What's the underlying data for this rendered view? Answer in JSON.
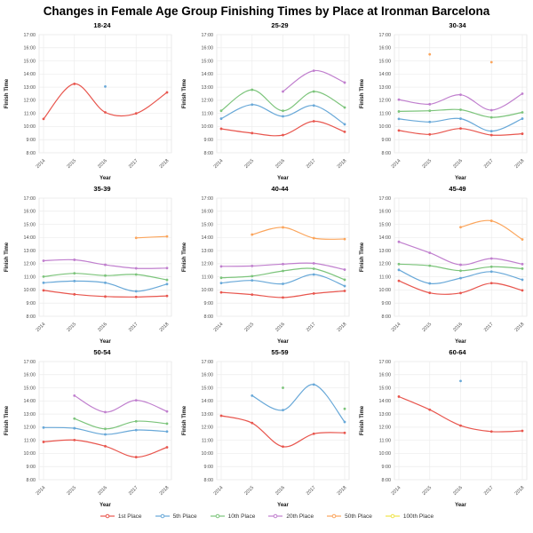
{
  "title": "Changes in Female Age Group Finishing Times by Place at Ironman Barcelona",
  "axes": {
    "xlabel": "Year",
    "ylabel": "Finish Time",
    "x_ticks": [
      2014,
      2015,
      2016,
      2017,
      2018
    ],
    "y_ticks": [
      "8:00",
      "9:00",
      "10:00",
      "11:00",
      "12:00",
      "13:00",
      "14:00",
      "15:00",
      "16:00",
      "17:00"
    ],
    "ylim": [
      8,
      17
    ],
    "grid": true,
    "grid_color": "#ececec",
    "panel_border_color": "#dddddd",
    "tick_label_color": "#4d4d4d",
    "axis_title_color": "#111111"
  },
  "palette": {
    "1st Place": "#e8564e",
    "5th Place": "#68a8d8",
    "10th Place": "#7cc47b",
    "20th Place": "#c07fce",
    "50th Place": "#fba55c",
    "100th Place": "#efe44a"
  },
  "legend": {
    "position": "bottom",
    "items": [
      "1st Place",
      "5th Place",
      "10th Place",
      "20th Place",
      "50th Place",
      "100th Place"
    ]
  },
  "chart_data": [
    {
      "type": "line",
      "title": "18-24",
      "x": [
        2014,
        2015,
        2016,
        2017,
        2018
      ],
      "series": [
        {
          "name": "1st Place",
          "values": [
            10.58,
            13.25,
            11.08,
            11.0,
            12.6
          ]
        },
        {
          "name": "5th Place",
          "values": [
            null,
            null,
            13.05,
            null,
            null
          ]
        }
      ]
    },
    {
      "type": "line",
      "title": "25-29",
      "x": [
        2014,
        2015,
        2016,
        2017,
        2018
      ],
      "series": [
        {
          "name": "1st Place",
          "values": [
            9.83,
            9.5,
            9.35,
            10.4,
            9.6
          ]
        },
        {
          "name": "5th Place",
          "values": [
            10.6,
            11.67,
            10.78,
            11.6,
            10.17
          ]
        },
        {
          "name": "10th Place",
          "values": [
            11.2,
            12.8,
            11.2,
            12.67,
            11.45
          ]
        },
        {
          "name": "20th Place",
          "values": [
            null,
            null,
            12.67,
            14.25,
            13.35
          ]
        }
      ]
    },
    {
      "type": "line",
      "title": "30-34",
      "x": [
        2014,
        2015,
        2016,
        2017,
        2018
      ],
      "series": [
        {
          "name": "1st Place",
          "values": [
            9.7,
            9.4,
            9.85,
            9.35,
            9.45
          ]
        },
        {
          "name": "5th Place",
          "values": [
            10.58,
            10.35,
            10.6,
            9.65,
            10.6
          ]
        },
        {
          "name": "10th Place",
          "values": [
            11.15,
            11.2,
            11.28,
            10.7,
            11.08
          ]
        },
        {
          "name": "20th Place",
          "values": [
            12.05,
            11.7,
            12.42,
            11.25,
            12.5
          ]
        },
        {
          "name": "50th Place",
          "values": [
            null,
            15.5,
            null,
            14.9,
            null
          ]
        }
      ]
    },
    {
      "type": "line",
      "title": "35-39",
      "x": [
        2014,
        2015,
        2016,
        2017,
        2018
      ],
      "series": [
        {
          "name": "1st Place",
          "values": [
            9.97,
            9.67,
            9.5,
            9.47,
            9.55
          ]
        },
        {
          "name": "5th Place",
          "values": [
            10.55,
            10.68,
            10.55,
            9.9,
            10.45
          ]
        },
        {
          "name": "10th Place",
          "values": [
            11.02,
            11.27,
            11.1,
            11.18,
            10.77
          ]
        },
        {
          "name": "20th Place",
          "values": [
            12.23,
            12.3,
            11.92,
            11.65,
            11.67
          ]
        },
        {
          "name": "50th Place",
          "values": [
            null,
            null,
            null,
            13.97,
            14.08
          ]
        }
      ]
    },
    {
      "type": "line",
      "title": "40-44",
      "x": [
        2014,
        2015,
        2016,
        2017,
        2018
      ],
      "series": [
        {
          "name": "1st Place",
          "values": [
            9.82,
            9.65,
            9.43,
            9.73,
            9.93
          ]
        },
        {
          "name": "5th Place",
          "values": [
            10.53,
            10.73,
            10.47,
            11.18,
            10.3
          ]
        },
        {
          "name": "10th Place",
          "values": [
            10.93,
            11.05,
            11.45,
            11.62,
            10.78
          ]
        },
        {
          "name": "20th Place",
          "values": [
            11.8,
            11.83,
            11.97,
            12.03,
            11.55
          ]
        },
        {
          "name": "50th Place",
          "values": [
            null,
            14.22,
            14.77,
            13.95,
            13.88
          ]
        }
      ]
    },
    {
      "type": "line",
      "title": "45-49",
      "x": [
        2014,
        2015,
        2016,
        2017,
        2018
      ],
      "series": [
        {
          "name": "1st Place",
          "values": [
            10.7,
            9.78,
            9.77,
            10.52,
            9.97
          ]
        },
        {
          "name": "5th Place",
          "values": [
            11.53,
            10.5,
            10.9,
            11.4,
            10.78
          ]
        },
        {
          "name": "10th Place",
          "values": [
            11.97,
            11.85,
            11.47,
            11.77,
            11.63
          ]
        },
        {
          "name": "20th Place",
          "values": [
            13.67,
            12.83,
            11.92,
            12.4,
            11.97
          ]
        },
        {
          "name": "50th Place",
          "values": [
            null,
            null,
            14.78,
            15.27,
            13.85
          ]
        }
      ]
    },
    {
      "type": "line",
      "title": "50-54",
      "x": [
        2014,
        2015,
        2016,
        2017,
        2018
      ],
      "series": [
        {
          "name": "1st Place",
          "values": [
            10.88,
            11.02,
            10.55,
            9.72,
            10.47
          ]
        },
        {
          "name": "5th Place",
          "values": [
            11.97,
            11.92,
            11.45,
            11.78,
            11.67
          ]
        },
        {
          "name": "10th Place",
          "values": [
            null,
            12.65,
            11.87,
            12.45,
            12.27
          ]
        },
        {
          "name": "20th Place",
          "values": [
            null,
            14.4,
            13.15,
            14.05,
            13.2
          ]
        }
      ]
    },
    {
      "type": "line",
      "title": "55-59",
      "x": [
        2014,
        2015,
        2016,
        2017,
        2018
      ],
      "series": [
        {
          "name": "1st Place",
          "values": [
            12.87,
            12.32,
            10.52,
            11.5,
            11.57
          ]
        },
        {
          "name": "5th Place",
          "values": [
            null,
            14.4,
            13.3,
            15.25,
            12.4
          ]
        },
        {
          "name": "10th Place",
          "values": [
            null,
            null,
            15.0,
            null,
            13.4
          ]
        }
      ]
    },
    {
      "type": "line",
      "title": "60-64",
      "x": [
        2014,
        2015,
        2016,
        2017,
        2018
      ],
      "series": [
        {
          "name": "1st Place",
          "values": [
            14.33,
            13.33,
            12.12,
            11.67,
            11.72
          ]
        },
        {
          "name": "5th Place",
          "values": [
            null,
            null,
            15.52,
            null,
            null
          ]
        }
      ]
    }
  ]
}
